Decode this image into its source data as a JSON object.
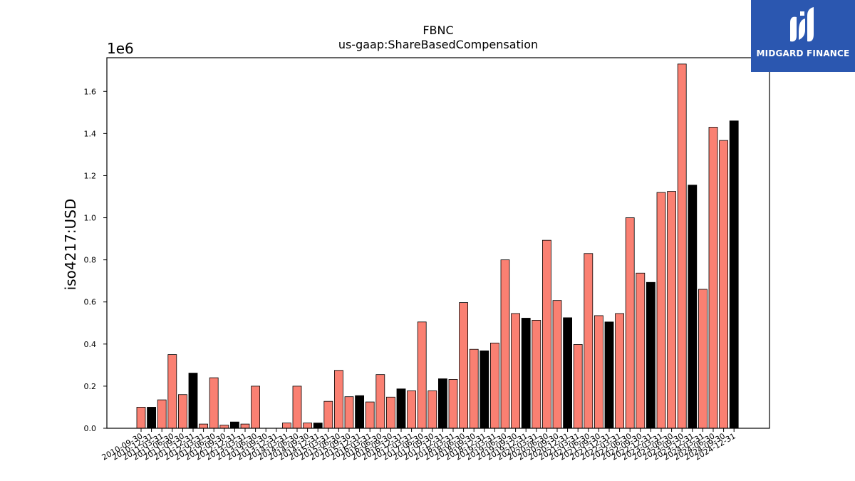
{
  "chart_data": {
    "type": "bar",
    "title": "FBNC",
    "subtitle": "us-gaap:ShareBasedCompensation",
    "ylabel": "iso4217:USD",
    "xlabel": "",
    "y_exponent_label": "1e6",
    "ylim": [
      0,
      1760000
    ],
    "yticks": [
      0,
      200000,
      400000,
      600000,
      800000,
      1000000,
      1200000,
      1400000,
      1600000
    ],
    "ytick_labels": [
      "0.0",
      "0.2",
      "0.4",
      "0.6",
      "0.8",
      "1.0",
      "1.2",
      "1.4",
      "1.6"
    ],
    "grid": false,
    "legend": "none",
    "colors": {
      "quarter": "#fa8072",
      "year_end": "#000000",
      "edge": "#000000"
    },
    "categories": [
      "2010-09-30",
      "2010-12-31",
      "2011-03-31",
      "2011-06-30",
      "2011-09-30",
      "2011-12-31",
      "2012-03-31",
      "2012-06-30",
      "2012-09-30",
      "2012-12-31",
      "2013-03-31",
      "2013-06-30",
      "2013-09-30",
      "2013-12-31",
      "2014-03-31",
      "2014-06-30",
      "2014-09-30",
      "2014-12-31",
      "2015-03-31",
      "2015-06-30",
      "2015-09-30",
      "2015-12-31",
      "2016-03-31",
      "2016-06-30",
      "2016-09-30",
      "2016-12-31",
      "2017-03-31",
      "2017-06-30",
      "2017-09-30",
      "2017-12-31",
      "2018-03-31",
      "2018-06-30",
      "2018-09-30",
      "2018-12-31",
      "2019-03-31",
      "2019-06-30",
      "2019-09-30",
      "2019-12-31",
      "2020-03-31",
      "2020-06-30",
      "2020-09-30",
      "2020-12-31",
      "2021-03-31",
      "2021-06-30",
      "2021-09-30",
      "2021-12-31",
      "2022-03-31",
      "2022-06-30",
      "2022-09-30",
      "2022-12-31",
      "2023-03-31",
      "2023-06-30",
      "2023-09-30",
      "2023-12-31",
      "2024-03-31",
      "2024-06-30",
      "2024-09-30",
      "2024-12-31"
    ],
    "values": [
      100000,
      100000,
      135000,
      350000,
      160000,
      262000,
      20000,
      240000,
      15000,
      30000,
      20000,
      200000,
      0,
      0,
      25000,
      200000,
      25000,
      25000,
      128000,
      275000,
      150000,
      155000,
      125000,
      255000,
      148000,
      187000,
      178000,
      505000,
      178000,
      235000,
      232000,
      597000,
      375000,
      368000,
      405000,
      800000,
      545000,
      523000,
      513000,
      893000,
      607000,
      525000,
      398000,
      830000,
      535000,
      505000,
      545000,
      1000000,
      737000,
      693000,
      1120000,
      1125000,
      1730000,
      1155000,
      660000,
      1430000,
      1367000,
      1460000
    ],
    "year_end": [
      false,
      true,
      false,
      false,
      false,
      true,
      false,
      false,
      false,
      true,
      false,
      false,
      false,
      true,
      false,
      false,
      false,
      true,
      false,
      false,
      false,
      true,
      false,
      false,
      false,
      true,
      false,
      false,
      false,
      true,
      false,
      false,
      false,
      true,
      false,
      false,
      false,
      true,
      false,
      false,
      false,
      true,
      false,
      false,
      false,
      true,
      false,
      false,
      false,
      true,
      false,
      false,
      false,
      true,
      false,
      false,
      false,
      true
    ]
  },
  "logo": {
    "text": "MIDGARD FINANCE",
    "color": "#2b57b0"
  }
}
